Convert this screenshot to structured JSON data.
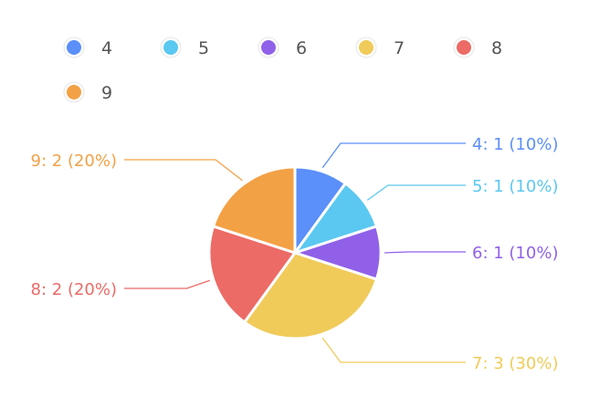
{
  "chart_data": {
    "type": "pie",
    "categories": [
      "4",
      "5",
      "6",
      "7",
      "8",
      "9"
    ],
    "values": [
      1,
      1,
      1,
      3,
      2,
      2
    ],
    "percents": [
      "10%",
      "10%",
      "10%",
      "30%",
      "20%",
      "20%"
    ],
    "colors": [
      "#5b8ff9",
      "#5ac8f0",
      "#9061e8",
      "#f0cb5a",
      "#ec6b66",
      "#f3a145"
    ],
    "labels": [
      "4: 1 (10%)",
      "5: 1 (10%)",
      "6: 1 (10%)",
      "7: 3 (30%)",
      "8: 2 (20%)",
      "9: 2 (20%)"
    ],
    "legend": {
      "position": "top-left",
      "items": [
        "4",
        "5",
        "6",
        "7",
        "8",
        "9"
      ]
    }
  }
}
